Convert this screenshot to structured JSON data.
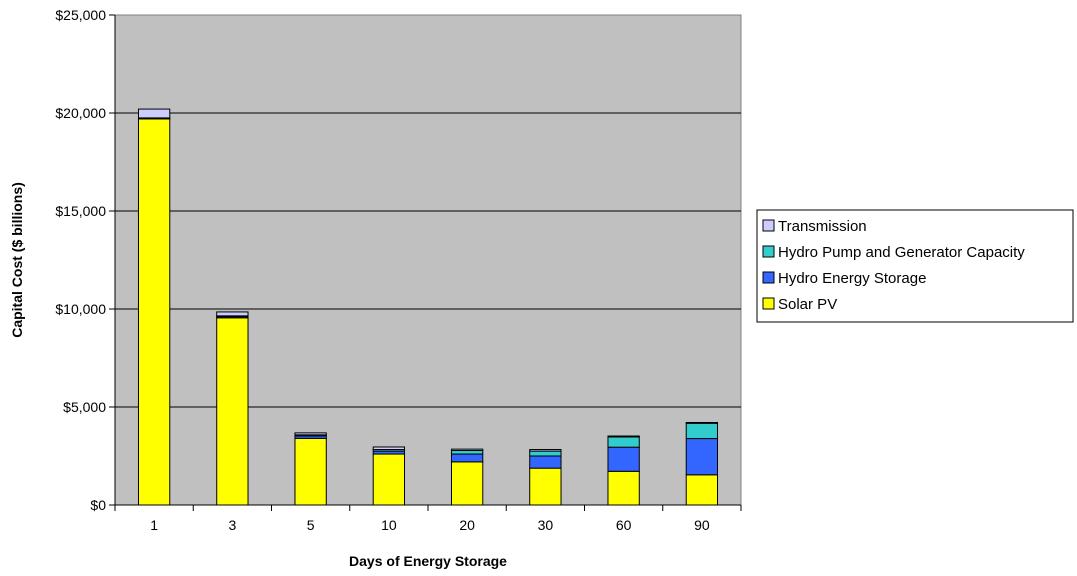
{
  "chart_data": {
    "type": "bar",
    "stacked": true,
    "categories": [
      "1",
      "3",
      "5",
      "10",
      "20",
      "30",
      "60",
      "90"
    ],
    "series": [
      {
        "name": "Solar PV",
        "color": "#ffff00",
        "values": [
          19700,
          9550,
          3400,
          2600,
          2200,
          1880,
          1720,
          1540
        ]
      },
      {
        "name": "Hydro Energy Storage",
        "color": "#3366ff",
        "values": [
          30,
          60,
          120,
          150,
          400,
          620,
          1230,
          1850
        ]
      },
      {
        "name": "Hydro Pump and Generator Capacity",
        "color": "#33cccc",
        "values": [
          20,
          40,
          60,
          80,
          180,
          250,
          520,
          780
        ]
      },
      {
        "name": "Transmission",
        "color": "#ccccff",
        "values": [
          450,
          200,
          100,
          130,
          70,
          80,
          50,
          40
        ]
      }
    ],
    "xlabel": "Days of Energy Storage",
    "ylabel": "Capital Cost ($ billions)",
    "ylim": [
      0,
      25000
    ],
    "y_ticks": [
      "$0",
      "$5,000",
      "$10,000",
      "$15,000",
      "$20,000",
      "$25,000"
    ],
    "y_tick_values": [
      0,
      5000,
      10000,
      15000,
      20000,
      25000
    ],
    "grid": true,
    "plot_background": "#c0c0c0",
    "legend_position": "right",
    "legend_order": [
      "Transmission",
      "Hydro Pump and Generator Capacity",
      "Hydro Energy Storage",
      "Solar PV"
    ]
  }
}
